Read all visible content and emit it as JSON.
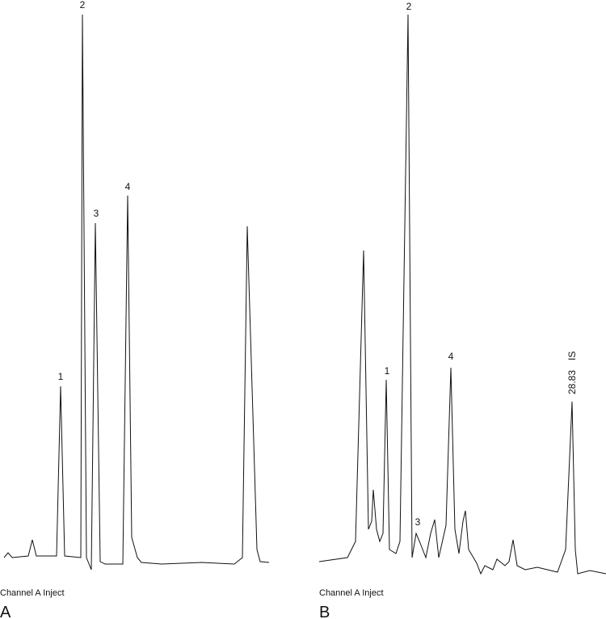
{
  "panels": [
    {
      "label": "A",
      "caption": "Channel A Inject",
      "peaks": [
        "1",
        "2",
        "3",
        "4"
      ]
    },
    {
      "label": "B",
      "caption": "Channel A Inject",
      "peaks": [
        "1",
        "2",
        "3",
        "4"
      ],
      "retention_time": "28.83",
      "standard": "IS"
    }
  ]
}
